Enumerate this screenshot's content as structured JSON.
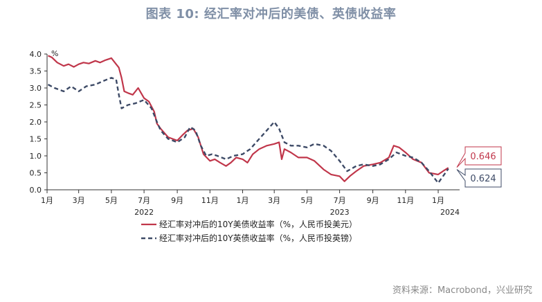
{
  "title": "图表 10: 经汇率对冲后的美债、英债收益率",
  "source": "资料来源：Macrobond，兴业研究",
  "chart_data": {
    "type": "line",
    "y_unit": "%",
    "ylim": [
      0,
      4
    ],
    "yticks": [
      "0.0",
      "0.5",
      "1.0",
      "1.5",
      "2.0",
      "2.5",
      "3.0",
      "3.5",
      "4.0"
    ],
    "month_ticks": [
      "1月",
      "3月",
      "5月",
      "7月",
      "9月",
      "11月",
      "1月",
      "3月",
      "5月",
      "7月",
      "9月",
      "11月",
      "1月"
    ],
    "year_ticks": [
      "2022",
      "2023",
      "2024"
    ],
    "legend_placement": "bottom-center",
    "grid": false,
    "series": [
      {
        "name": "经汇率对冲后的10Y美债收益率（%，人民币投美元）",
        "color": "#c0364a",
        "dash": "solid",
        "last_value": "0.646",
        "points": [
          [
            "2022-01-03",
            3.95
          ],
          [
            "2022-01-10",
            3.9
          ],
          [
            "2022-01-20",
            3.75
          ],
          [
            "2022-02-01",
            3.65
          ],
          [
            "2022-02-10",
            3.7
          ],
          [
            "2022-02-20",
            3.62
          ],
          [
            "2022-03-01",
            3.7
          ],
          [
            "2022-03-10",
            3.75
          ],
          [
            "2022-03-20",
            3.72
          ],
          [
            "2022-04-01",
            3.8
          ],
          [
            "2022-04-10",
            3.75
          ],
          [
            "2022-04-20",
            3.82
          ],
          [
            "2022-05-01",
            3.88
          ],
          [
            "2022-05-10",
            3.7
          ],
          [
            "2022-05-15",
            3.6
          ],
          [
            "2022-05-20",
            3.3
          ],
          [
            "2022-05-25",
            2.9
          ],
          [
            "2022-06-01",
            2.85
          ],
          [
            "2022-06-10",
            2.8
          ],
          [
            "2022-06-20",
            3.0
          ],
          [
            "2022-07-01",
            2.7
          ],
          [
            "2022-07-10",
            2.6
          ],
          [
            "2022-07-20",
            2.3
          ],
          [
            "2022-07-25",
            1.95
          ],
          [
            "2022-08-01",
            1.8
          ],
          [
            "2022-08-15",
            1.55
          ],
          [
            "2022-09-01",
            1.45
          ],
          [
            "2022-09-10",
            1.6
          ],
          [
            "2022-09-20",
            1.75
          ],
          [
            "2022-10-01",
            1.8
          ],
          [
            "2022-10-10",
            1.55
          ],
          [
            "2022-10-20",
            1.05
          ],
          [
            "2022-11-01",
            0.85
          ],
          [
            "2022-11-10",
            0.9
          ],
          [
            "2022-11-20",
            0.8
          ],
          [
            "2022-12-01",
            0.7
          ],
          [
            "2022-12-10",
            0.8
          ],
          [
            "2022-12-20",
            0.95
          ],
          [
            "2023-01-01",
            0.9
          ],
          [
            "2023-01-10",
            0.8
          ],
          [
            "2023-01-20",
            1.05
          ],
          [
            "2023-02-01",
            1.2
          ],
          [
            "2023-02-15",
            1.3
          ],
          [
            "2023-03-01",
            1.35
          ],
          [
            "2023-03-10",
            1.4
          ],
          [
            "2023-03-15",
            0.9
          ],
          [
            "2023-03-20",
            1.2
          ],
          [
            "2023-04-01",
            1.1
          ],
          [
            "2023-04-15",
            0.95
          ],
          [
            "2023-05-01",
            0.95
          ],
          [
            "2023-05-15",
            0.85
          ],
          [
            "2023-06-01",
            0.6
          ],
          [
            "2023-06-15",
            0.45
          ],
          [
            "2023-07-01",
            0.4
          ],
          [
            "2023-07-10",
            0.25
          ],
          [
            "2023-07-20",
            0.4
          ],
          [
            "2023-08-01",
            0.55
          ],
          [
            "2023-08-15",
            0.7
          ],
          [
            "2023-09-01",
            0.75
          ],
          [
            "2023-09-15",
            0.8
          ],
          [
            "2023-10-01",
            0.95
          ],
          [
            "2023-10-10",
            1.3
          ],
          [
            "2023-10-20",
            1.25
          ],
          [
            "2023-11-01",
            1.1
          ],
          [
            "2023-11-15",
            0.9
          ],
          [
            "2023-12-01",
            0.8
          ],
          [
            "2023-12-15",
            0.5
          ],
          [
            "2024-01-01",
            0.45
          ],
          [
            "2024-01-10",
            0.55
          ],
          [
            "2024-01-20",
            0.65
          ]
        ]
      },
      {
        "name": "经汇率对冲后的10Y英债收益率（%，人民币投英镑）",
        "color": "#3d4a66",
        "dash": "dashed",
        "last_value": "0.624",
        "points": [
          [
            "2022-01-03",
            3.1
          ],
          [
            "2022-01-15",
            3.0
          ],
          [
            "2022-02-01",
            2.9
          ],
          [
            "2022-02-15",
            3.05
          ],
          [
            "2022-03-01",
            2.9
          ],
          [
            "2022-03-15",
            3.05
          ],
          [
            "2022-04-01",
            3.1
          ],
          [
            "2022-04-15",
            3.2
          ],
          [
            "2022-05-01",
            3.3
          ],
          [
            "2022-05-10",
            3.25
          ],
          [
            "2022-05-15",
            2.8
          ],
          [
            "2022-05-20",
            2.4
          ],
          [
            "2022-06-01",
            2.5
          ],
          [
            "2022-06-15",
            2.55
          ],
          [
            "2022-07-01",
            2.65
          ],
          [
            "2022-07-15",
            2.4
          ],
          [
            "2022-07-25",
            2.0
          ],
          [
            "2022-08-01",
            1.75
          ],
          [
            "2022-08-15",
            1.5
          ],
          [
            "2022-09-01",
            1.4
          ],
          [
            "2022-09-15",
            1.55
          ],
          [
            "2022-09-25",
            1.85
          ],
          [
            "2022-10-05",
            1.75
          ],
          [
            "2022-10-15",
            1.3
          ],
          [
            "2022-10-25",
            1.0
          ],
          [
            "2022-11-05",
            1.05
          ],
          [
            "2022-11-15",
            1.0
          ],
          [
            "2022-12-01",
            0.9
          ],
          [
            "2022-12-15",
            1.0
          ],
          [
            "2023-01-01",
            1.05
          ],
          [
            "2023-01-15",
            1.2
          ],
          [
            "2023-02-01",
            1.5
          ],
          [
            "2023-02-15",
            1.75
          ],
          [
            "2023-03-01",
            2.0
          ],
          [
            "2023-03-10",
            1.8
          ],
          [
            "2023-03-20",
            1.4
          ],
          [
            "2023-04-01",
            1.3
          ],
          [
            "2023-04-15",
            1.3
          ],
          [
            "2023-05-01",
            1.25
          ],
          [
            "2023-05-15",
            1.35
          ],
          [
            "2023-06-01",
            1.3
          ],
          [
            "2023-06-15",
            1.15
          ],
          [
            "2023-07-01",
            0.85
          ],
          [
            "2023-07-15",
            0.55
          ],
          [
            "2023-08-01",
            0.7
          ],
          [
            "2023-08-15",
            0.75
          ],
          [
            "2023-09-01",
            0.7
          ],
          [
            "2023-09-15",
            0.75
          ],
          [
            "2023-10-01",
            0.9
          ],
          [
            "2023-10-15",
            1.1
          ],
          [
            "2023-11-01",
            1.0
          ],
          [
            "2023-11-15",
            0.95
          ],
          [
            "2023-12-01",
            0.8
          ],
          [
            "2023-12-15",
            0.55
          ],
          [
            "2024-01-01",
            0.2
          ],
          [
            "2024-01-10",
            0.4
          ],
          [
            "2024-01-20",
            0.62
          ]
        ]
      }
    ]
  }
}
